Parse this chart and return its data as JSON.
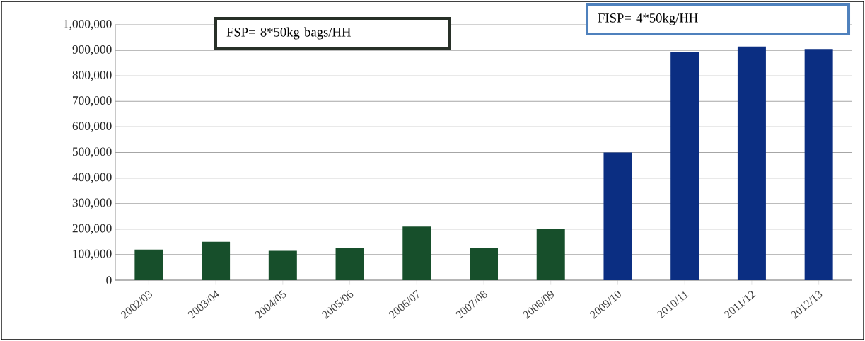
{
  "chart_data": {
    "type": "bar",
    "categories": [
      "2002/03",
      "2003/04",
      "2004/05",
      "2005/06",
      "2006/07",
      "2007/08",
      "2008/09",
      "2009/10",
      "2010/11",
      "2011/12",
      "2012/13"
    ],
    "values": [
      120000,
      150000,
      115000,
      125000,
      210000,
      125000,
      200000,
      500000,
      895000,
      915000,
      905000
    ],
    "colors": [
      "#174f2b",
      "#174f2b",
      "#174f2b",
      "#174f2b",
      "#174f2b",
      "#174f2b",
      "#174f2b",
      "#0b2e82",
      "#0b2e82",
      "#0b2e82",
      "#0b2e82"
    ],
    "ylim": [
      0,
      1000000
    ],
    "yticks": [
      {
        "value": 0,
        "label": "0"
      },
      {
        "value": 100000,
        "label": "100,000"
      },
      {
        "value": 200000,
        "label": "200,000"
      },
      {
        "value": 300000,
        "label": "300,000"
      },
      {
        "value": 400000,
        "label": "400,000"
      },
      {
        "value": 500000,
        "label": "500,000"
      },
      {
        "value": 600000,
        "label": "600,000"
      },
      {
        "value": 700000,
        "label": "700,000"
      },
      {
        "value": 800000,
        "label": "800,000"
      },
      {
        "value": 900000,
        "label": "900,000"
      },
      {
        "value": 1000000,
        "label": "1,000,000"
      }
    ],
    "grid": "y",
    "annotations": [
      "FSP= 8*50kg bags/HH",
      "FISP= 4*50kg/HH"
    ]
  }
}
